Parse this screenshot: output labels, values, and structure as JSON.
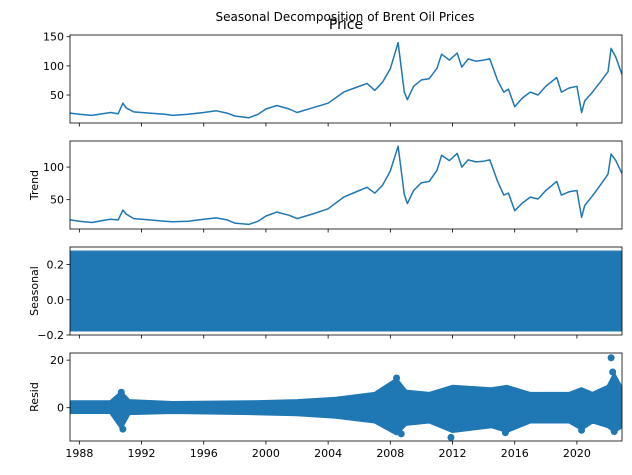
{
  "figure": {
    "suptitle": "Seasonal Decomposition of Brent Oil Prices",
    "line_color": "#1f77b4"
  },
  "chart_data": [
    {
      "type": "line",
      "panel": "observed",
      "title": "Price",
      "ylabel": "",
      "xlim": [
        1987.4,
        2022.9
      ],
      "ylim": [
        2,
        153
      ],
      "y_ticks": [
        50,
        100,
        150
      ],
      "x_ticks": [
        1988,
        1992,
        1996,
        2000,
        2004,
        2008,
        2012,
        2016,
        2020
      ],
      "x_tick_labels_visible": false,
      "series": [
        {
          "x": [
            1987.4,
            1988.0,
            1988.8,
            1989.5,
            1990.0,
            1990.5,
            1990.8,
            1991.0,
            1991.5,
            1992.5,
            1993.5,
            1994.0,
            1995.0,
            1996.0,
            1996.8,
            1997.5,
            1998.0,
            1998.9,
            1999.5,
            2000.0,
            2000.7,
            2001.5,
            2002.0,
            2003.0,
            2004.0,
            2005.0,
            2005.7,
            2006.5,
            2007.0,
            2007.5,
            2008.0,
            2008.5,
            2008.9,
            2009.1,
            2009.5,
            2010.0,
            2010.5,
            2011.0,
            2011.3,
            2011.8,
            2012.3,
            2012.6,
            2013.0,
            2013.5,
            2014.0,
            2014.4,
            2014.9,
            2015.3,
            2015.6,
            2016.0,
            2016.5,
            2017.0,
            2017.5,
            2018.0,
            2018.7,
            2019.0,
            2019.5,
            2020.0,
            2020.3,
            2020.5,
            2021.0,
            2021.5,
            2022.0,
            2022.2,
            2022.5,
            2022.9
          ],
          "y": [
            19,
            17,
            15,
            18,
            20,
            18,
            36,
            28,
            21,
            19,
            17,
            15,
            17,
            20,
            23,
            19,
            14,
            11,
            17,
            26,
            32,
            26,
            20,
            28,
            36,
            55,
            62,
            70,
            58,
            72,
            95,
            140,
            55,
            42,
            65,
            76,
            78,
            96,
            120,
            110,
            122,
            98,
            112,
            108,
            110,
            112,
            75,
            55,
            60,
            30,
            45,
            55,
            50,
            65,
            80,
            55,
            62,
            65,
            20,
            40,
            55,
            72,
            90,
            130,
            115,
            85
          ]
        }
      ]
    },
    {
      "type": "line",
      "panel": "trend",
      "title": "",
      "ylabel": "Trend",
      "xlim": [
        1987.4,
        2022.9
      ],
      "ylim": [
        5,
        140
      ],
      "y_ticks": [
        50,
        100
      ],
      "x_ticks": [
        1988,
        1992,
        1996,
        2000,
        2004,
        2008,
        2012,
        2016,
        2020
      ],
      "x_tick_labels_visible": false,
      "series": [
        {
          "x": [
            1987.4,
            1988.0,
            1988.8,
            1989.5,
            1990.0,
            1990.5,
            1990.8,
            1991.0,
            1991.5,
            1992.5,
            1993.5,
            1994.0,
            1995.0,
            1996.0,
            1996.8,
            1997.5,
            1998.0,
            1998.9,
            1999.5,
            2000.0,
            2000.7,
            2001.5,
            2002.0,
            2003.0,
            2004.0,
            2005.0,
            2005.7,
            2006.5,
            2007.0,
            2007.5,
            2008.0,
            2008.5,
            2008.9,
            2009.1,
            2009.5,
            2010.0,
            2010.5,
            2011.0,
            2011.3,
            2011.8,
            2012.3,
            2012.6,
            2013.0,
            2013.5,
            2014.0,
            2014.4,
            2014.9,
            2015.3,
            2015.6,
            2016.0,
            2016.5,
            2017.0,
            2017.5,
            2018.0,
            2018.7,
            2019.0,
            2019.5,
            2020.0,
            2020.3,
            2020.5,
            2021.0,
            2021.5,
            2022.0,
            2022.2,
            2022.5,
            2022.9
          ],
          "y": [
            19,
            17,
            15,
            18,
            20,
            19,
            34,
            28,
            21,
            19,
            17,
            16,
            17,
            20,
            22,
            19,
            14,
            12,
            17,
            25,
            31,
            26,
            21,
            28,
            36,
            54,
            61,
            69,
            60,
            72,
            94,
            132,
            58,
            44,
            64,
            76,
            78,
            95,
            118,
            110,
            121,
            100,
            111,
            108,
            109,
            111,
            78,
            57,
            60,
            33,
            45,
            54,
            51,
            64,
            78,
            57,
            62,
            64,
            23,
            41,
            56,
            72,
            89,
            120,
            110,
            90
          ]
        }
      ]
    },
    {
      "type": "area",
      "panel": "seasonal",
      "title": "",
      "ylabel": "Seasonal",
      "xlim": [
        1987.4,
        2022.9
      ],
      "ylim": [
        -0.2,
        0.3
      ],
      "y_ticks": [
        -0.2,
        0.0,
        0.2
      ],
      "y_tick_labels": [
        "−0.2",
        "0.0",
        "0.2"
      ],
      "x_ticks": [
        1988,
        1992,
        1996,
        2000,
        2004,
        2008,
        2012,
        2016,
        2020
      ],
      "x_tick_labels_visible": false,
      "band": {
        "max": 0.28,
        "min": -0.18
      }
    },
    {
      "type": "scatter",
      "panel": "resid",
      "title": "",
      "ylabel": "Resid",
      "xlim": [
        1987.4,
        2022.9
      ],
      "ylim": [
        -14,
        23
      ],
      "y_ticks": [
        0,
        20
      ],
      "x_ticks": [
        1988,
        1992,
        1996,
        2000,
        2004,
        2008,
        2012,
        2016,
        2020
      ],
      "x_tick_labels": [
        "1988",
        "1992",
        "1996",
        "2000",
        "2004",
        "2008",
        "2012",
        "2016",
        "2020"
      ],
      "x_tick_labels_visible": true,
      "envelope": {
        "x": [
          1987.4,
          1990.0,
          1990.7,
          1991.2,
          1994.0,
          1999.0,
          2002.0,
          2004.5,
          2007.0,
          2008.4,
          2009.0,
          2010.5,
          2012.0,
          2014.5,
          2015.5,
          2017.0,
          2019.5,
          2020.3,
          2021.0,
          2022.0,
          2022.4,
          2022.9
        ],
        "high": [
          2.5,
          2.5,
          6.5,
          3.0,
          2.2,
          2.5,
          3.0,
          4.0,
          6.0,
          12.0,
          7.0,
          6.0,
          9.0,
          8.0,
          9.0,
          6.0,
          6.0,
          8.0,
          6.0,
          9.0,
          14.0,
          8.0
        ],
        "low": [
          -2.0,
          -2.0,
          -8.5,
          -2.5,
          -2.0,
          -2.5,
          -3.0,
          -4.0,
          -6.0,
          -11.0,
          -7.0,
          -6.0,
          -10.0,
          -8.0,
          -10.0,
          -6.0,
          -6.0,
          -9.0,
          -6.0,
          -8.0,
          -10.0,
          -8.0
        ]
      },
      "outliers": [
        {
          "x": 1990.7,
          "y": 6.5
        },
        {
          "x": 1990.8,
          "y": -9.0
        },
        {
          "x": 2008.4,
          "y": 12.5
        },
        {
          "x": 2008.7,
          "y": -11.0
        },
        {
          "x": 2011.9,
          "y": -12.5
        },
        {
          "x": 2015.4,
          "y": -10.5
        },
        {
          "x": 2020.3,
          "y": -9.5
        },
        {
          "x": 2022.2,
          "y": 21.0
        },
        {
          "x": 2022.3,
          "y": 15.0
        },
        {
          "x": 2022.4,
          "y": -10.0
        }
      ]
    }
  ]
}
